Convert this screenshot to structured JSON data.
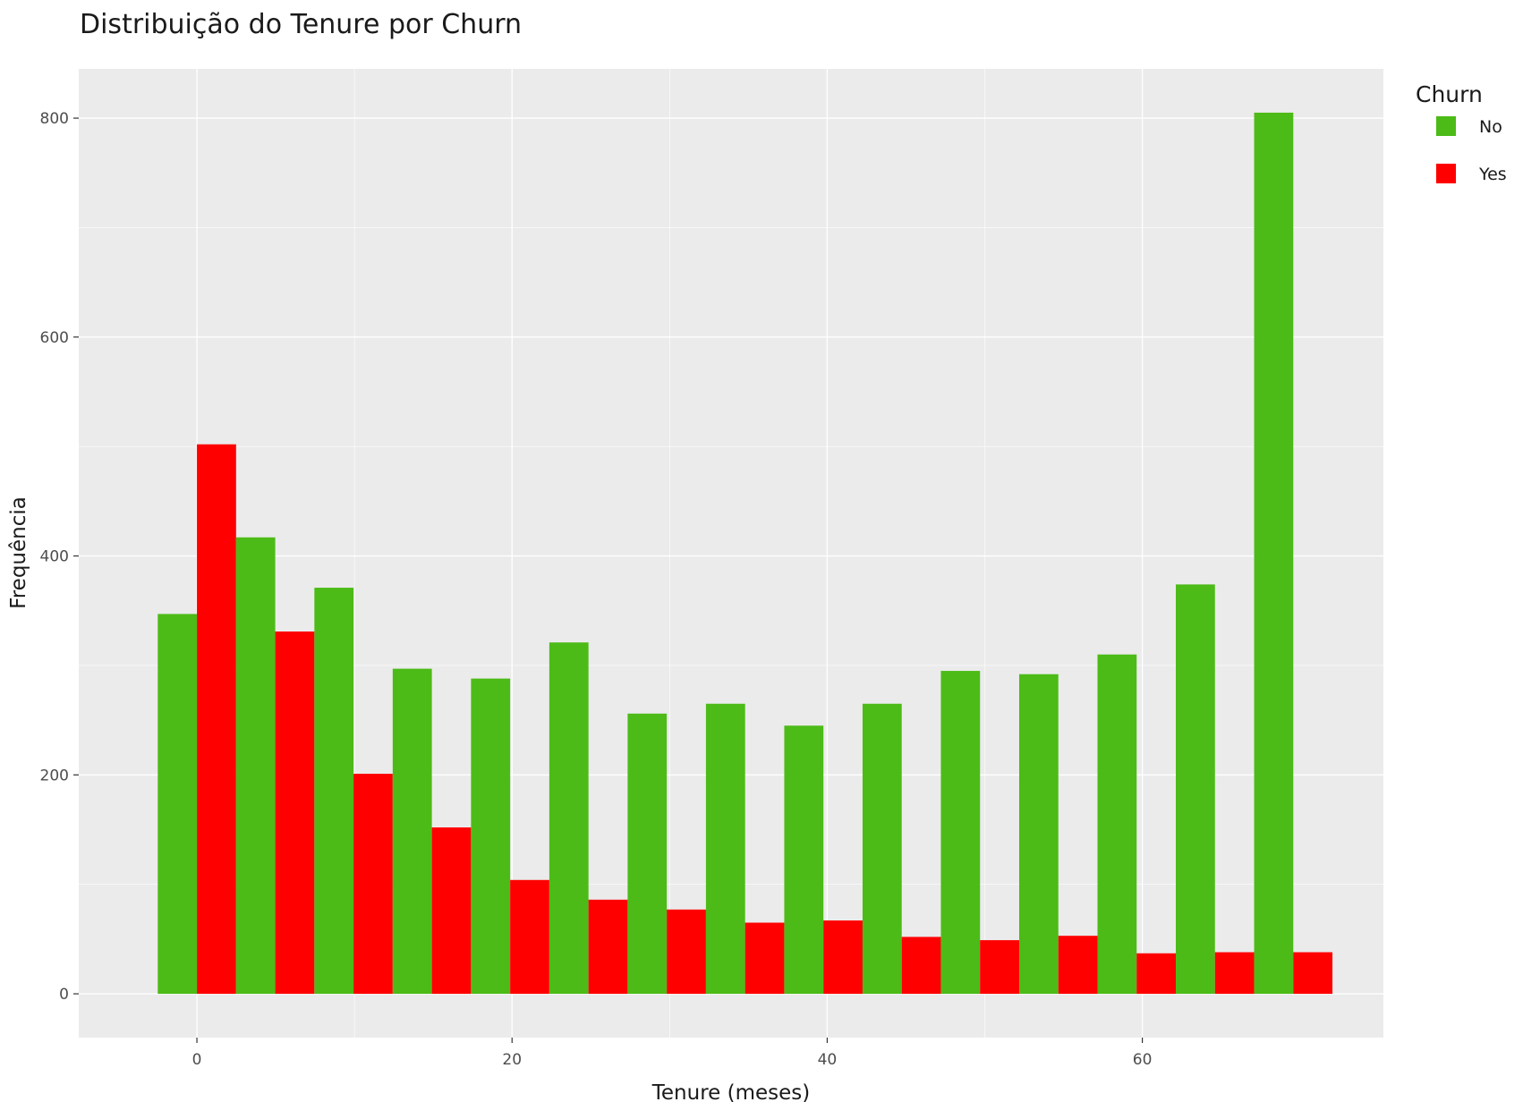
{
  "chart_data": {
    "type": "bar",
    "title": "Distribuição do Tenure por Churn",
    "xlabel": "Tenure (meses)",
    "ylabel": "Frequência",
    "x_bin_width": 4.97,
    "x_bin_centers": [
      0,
      4.97,
      9.94,
      14.91,
      19.88,
      24.85,
      29.82,
      34.79,
      39.76,
      44.73,
      49.7,
      54.67,
      59.64,
      64.61,
      69.58
    ],
    "series": [
      {
        "name": "No",
        "color": "#4cbb17",
        "values": [
          347,
          417,
          371,
          297,
          288,
          321,
          256,
          265,
          245,
          265,
          295,
          292,
          310,
          374,
          805
        ]
      },
      {
        "name": "Yes",
        "color": "#ff0000",
        "values": [
          502,
          331,
          201,
          152,
          104,
          86,
          77,
          65,
          67,
          52,
          49,
          53,
          37,
          38,
          38
        ]
      }
    ],
    "xlim": [
      -7.5,
      75.3
    ],
    "ylim": [
      -40,
      845
    ],
    "x_ticks": [
      0,
      20,
      40,
      60
    ],
    "y_ticks": [
      0,
      200,
      400,
      600,
      800
    ],
    "grid": true,
    "legend": {
      "title": "Churn",
      "position": "right",
      "entries": [
        "No",
        "Yes"
      ]
    },
    "panel_background": "#ebebeb",
    "grid_color": "#ffffff"
  }
}
